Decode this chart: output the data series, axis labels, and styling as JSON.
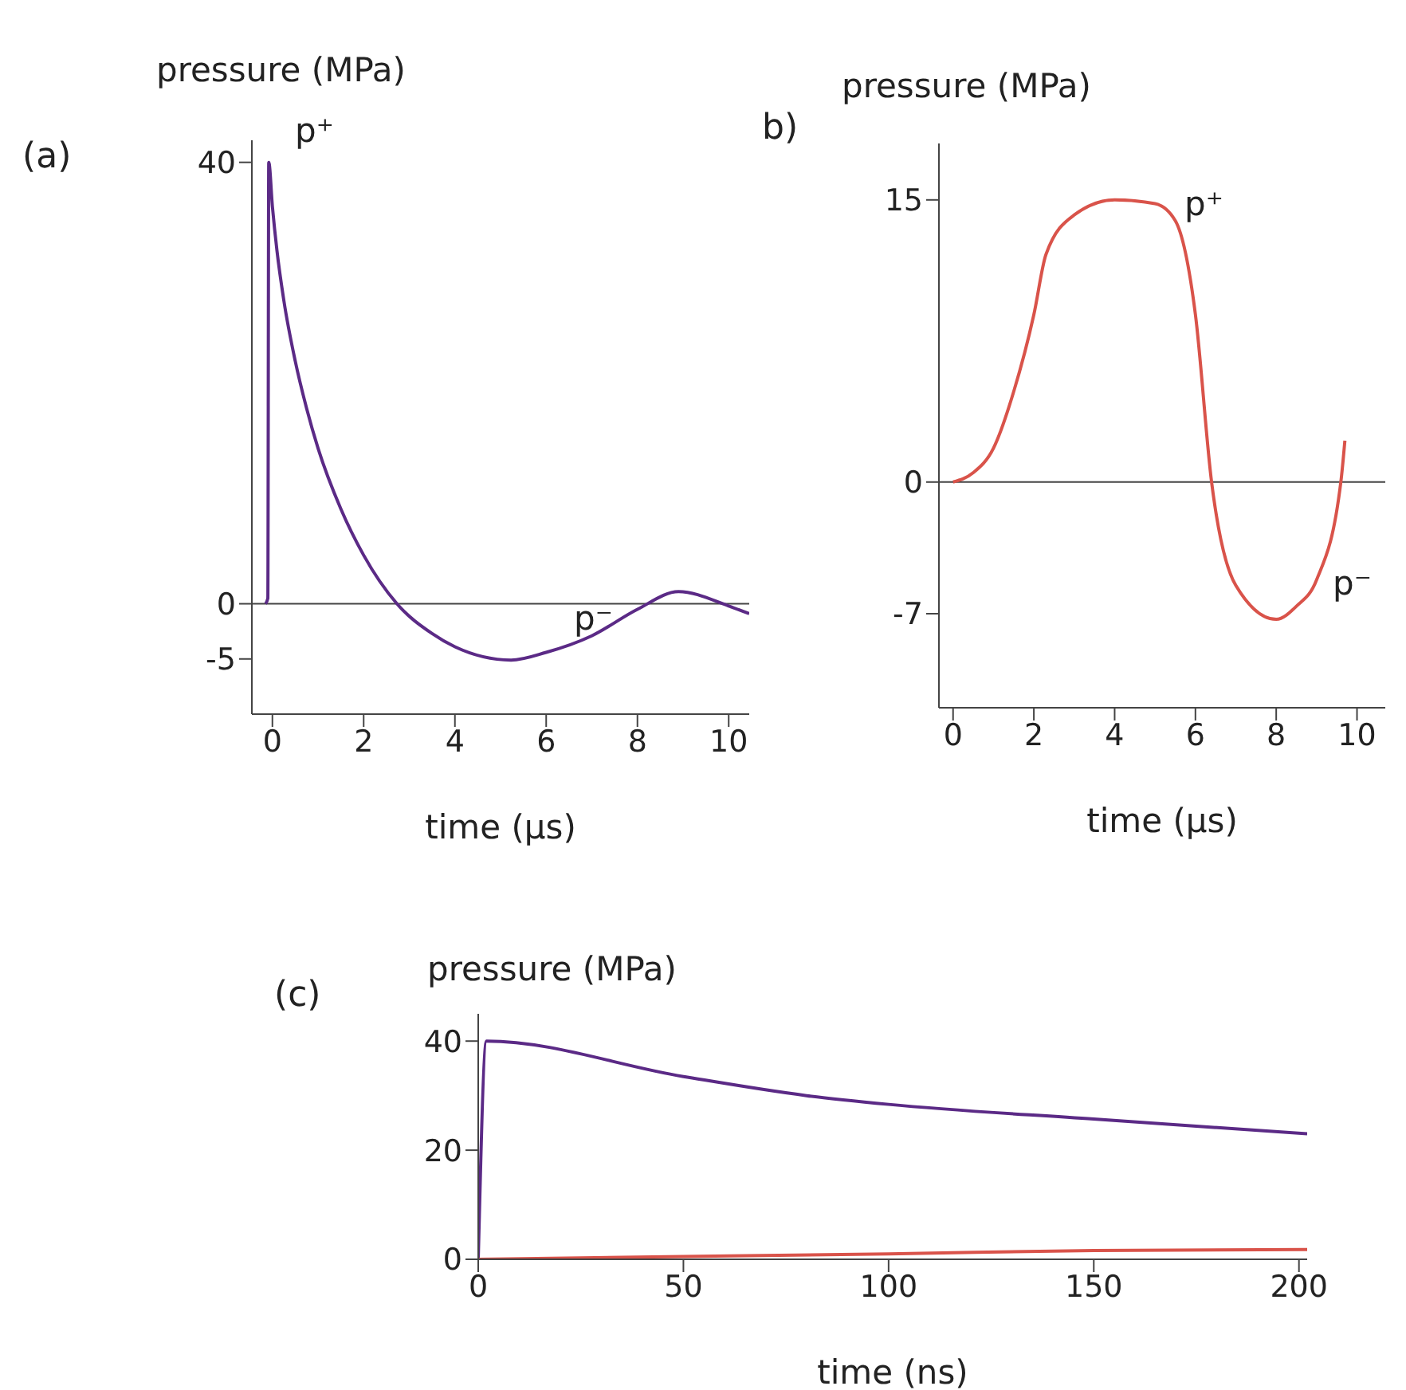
{
  "chart_data": [
    {
      "type": "line",
      "title": "(a)",
      "ylabel": "pressure (MPa)",
      "xlabel": "time (µs)",
      "xlim": [
        -0.45,
        10.45
      ],
      "xticks": [
        0,
        2,
        4,
        6,
        8,
        10
      ],
      "ylim": [
        -10,
        42
      ],
      "yticks": [
        -5,
        0,
        40
      ],
      "marker": "none",
      "ref_lines": [
        {
          "axis": "y",
          "value": 0,
          "color": "#444444"
        }
      ],
      "annotations": [
        "p⁺",
        "p⁻"
      ],
      "series": [
        {
          "color": "#5b2a86",
          "x": [
            -0.15,
            -0.1,
            -0.08,
            0,
            0.1,
            0.25,
            0.5,
            0.75,
            1,
            1.5,
            2,
            2.73,
            3.5,
            4,
            5.23,
            6,
            7,
            8,
            8.9,
            10,
            10.45
          ],
          "values": [
            0,
            0.5,
            40,
            36,
            32,
            27.5,
            22,
            17.7,
            14.1,
            8.6,
            4.4,
            0,
            -2.7,
            -3.9,
            -5.1,
            -4.4,
            -2.9,
            -0.5,
            1.1,
            -0.2,
            -0.9
          ]
        }
      ]
    },
    {
      "type": "line",
      "title": "b)",
      "ylabel": "pressure (MPa)",
      "xlabel": "time (µs)",
      "xlim": [
        -0.35,
        10.7
      ],
      "xticks": [
        0,
        2,
        4,
        6,
        8,
        10
      ],
      "ylim": [
        -12,
        18
      ],
      "yticks": [
        -7,
        0,
        15
      ],
      "marker": "none",
      "ref_lines": [
        {
          "axis": "y",
          "value": 0,
          "color": "#444444"
        }
      ],
      "annotations": [
        "p⁺",
        "p⁻"
      ],
      "series": [
        {
          "color": "#d9534a",
          "x": [
            0,
            0.5,
            1,
            1.5,
            2,
            2.3,
            3,
            4,
            5,
            5.5,
            6,
            6.4,
            7,
            8,
            8.5,
            9,
            9.6,
            9.7
          ],
          "values": [
            0,
            0.5,
            1.8,
            4.8,
            8.9,
            12.1,
            14.2,
            15,
            14.8,
            13.9,
            8.9,
            0,
            -5.5,
            -7.3,
            -6.6,
            -5.2,
            0,
            2.2
          ]
        }
      ]
    },
    {
      "type": "line",
      "title": "(c)",
      "ylabel": "pressure (MPa)",
      "xlabel": "time (ns)",
      "xlim": [
        0,
        202
      ],
      "xticks": [
        0,
        50,
        100,
        150,
        200
      ],
      "ylim": [
        0,
        45
      ],
      "yticks": [
        0,
        20,
        40
      ],
      "marker": "none",
      "series": [
        {
          "color": "#5b2a86",
          "x": [
            0,
            2,
            50,
            80,
            100,
            150,
            202
          ],
          "values": [
            0,
            40,
            33.5,
            30,
            28.4,
            25.7,
            23
          ]
        },
        {
          "color": "#d9534a",
          "x": [
            0,
            50,
            100,
            150,
            202
          ],
          "values": [
            0,
            0.5,
            1,
            1.6,
            1.8
          ]
        }
      ]
    }
  ]
}
